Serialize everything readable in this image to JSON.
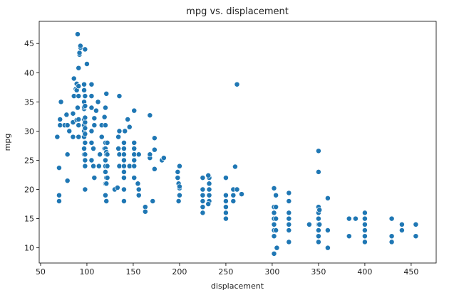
{
  "chart_data": {
    "type": "scatter",
    "title": "mpg vs. displacement",
    "x_label": "displacement",
    "y_label": "mpg",
    "color": "#1f77b4",
    "xlim": [
      48.5,
      477
    ],
    "ylim": [
      7.4,
      48.8
    ],
    "xticks": [
      50,
      100,
      150,
      200,
      250,
      300,
      350,
      400,
      450
    ],
    "yticks": [
      10,
      15,
      20,
      25,
      30,
      35,
      40,
      45
    ],
    "x": [
      68,
      70,
      70,
      70,
      71,
      71,
      72,
      76,
      78,
      79,
      79,
      79,
      81,
      85,
      85,
      85,
      86,
      86,
      88,
      89,
      89,
      89,
      90,
      90,
      91,
      91,
      91,
      91,
      91,
      91,
      92,
      92,
      93,
      93,
      97,
      97,
      97,
      97,
      97,
      97,
      97,
      97,
      97,
      97,
      97,
      98,
      98,
      98,
      98,
      98,
      98,
      98,
      98,
      98,
      98,
      98,
      98,
      100,
      105,
      105,
      105,
      105,
      105,
      105,
      107,
      107,
      108,
      108,
      108,
      110,
      112,
      113,
      114,
      116,
      116,
      119,
      119,
      120,
      120,
      120,
      120,
      120,
      120,
      120,
      120,
      120,
      121,
      121,
      121,
      121,
      121,
      121,
      122,
      122,
      122,
      122,
      130,
      133,
      134,
      134,
      135,
      135,
      135,
      135,
      140,
      140,
      140,
      140,
      140,
      140,
      140,
      140,
      140,
      141,
      144,
      146,
      146,
      151,
      151,
      151,
      151,
      151,
      151,
      151,
      155,
      156,
      156,
      156,
      163,
      163,
      168,
      168,
      168,
      171,
      173,
      173,
      173,
      181,
      183,
      198,
      198,
      199,
      199,
      200,
      200,
      200,
      200,
      225,
      225,
      225,
      225,
      225,
      225,
      232,
      232,
      232,
      232,
      232,
      231,
      231,
      250,
      250,
      250,
      250,
      250,
      250,
      258,
      258,
      258,
      260,
      262,
      262,
      267,
      302,
      302,
      302,
      302,
      302,
      302,
      302,
      302,
      304,
      304,
      304,
      304,
      305,
      318,
      318,
      318,
      318,
      318,
      318,
      318,
      340,
      350,
      350,
      350,
      350,
      350,
      350,
      350,
      350,
      350,
      351,
      351,
      360,
      360,
      360,
      383,
      383,
      390,
      400,
      400,
      400,
      400,
      400,
      400,
      429,
      429,
      429,
      440,
      440,
      455,
      455
    ],
    "values": [
      29,
      18,
      19,
      23.7,
      31,
      32,
      35,
      31,
      32.8,
      31,
      26,
      21.5,
      30,
      29,
      31.5,
      33,
      36,
      39,
      37.2,
      37,
      38.1,
      31.9,
      46.6,
      34,
      31,
      36,
      32,
      37.7,
      40.8,
      29,
      43.1,
      43.4,
      44.3,
      44.6,
      26,
      27,
      29,
      30,
      31,
      32,
      33.8,
      34.1,
      35,
      37,
      38,
      20,
      24,
      25,
      26,
      28,
      29.5,
      30.5,
      31.5,
      32.3,
      34.3,
      36,
      44,
      41.5,
      36,
      34,
      30,
      28,
      25,
      38,
      24,
      27,
      32.2,
      31,
      22,
      33.5,
      35,
      24,
      26,
      31,
      29,
      27,
      32.4,
      19,
      21,
      23,
      24,
      25,
      27,
      28,
      31,
      34,
      18,
      21,
      22,
      26,
      26.4,
      36.4,
      22,
      24,
      26,
      28,
      20,
      20.3,
      27,
      29,
      30,
      36,
      24,
      26,
      18,
      20,
      22,
      23,
      24,
      25,
      26,
      27,
      28,
      30,
      32,
      30.7,
      24,
      33.5,
      26,
      27,
      28,
      25,
      24,
      22,
      21,
      26,
      20,
      19,
      17,
      16.2,
      25.4,
      26,
      32.7,
      18,
      26.8,
      28.8,
      23.5,
      25,
      25.4,
      23,
      22,
      18,
      21,
      20.2,
      19,
      20.5,
      24,
      16,
      17,
      18,
      19,
      20,
      22,
      18,
      19,
      20,
      21,
      22,
      17.5,
      22.4,
      15,
      16,
      17,
      18,
      19,
      22,
      18,
      19,
      20,
      23.9,
      38,
      20,
      19.2,
      9,
      12,
      13,
      14,
      15,
      16,
      17,
      20.2,
      13,
      15,
      17,
      19,
      10,
      11,
      13,
      14,
      15,
      16,
      18,
      19.4,
      14,
      11,
      12,
      13,
      14,
      15,
      16,
      17,
      23,
      26.6,
      16.5,
      14,
      10,
      13,
      18.5,
      12,
      15,
      15,
      11,
      12,
      13,
      14,
      15,
      16,
      11,
      12,
      15,
      14,
      13,
      12,
      14
    ]
  }
}
